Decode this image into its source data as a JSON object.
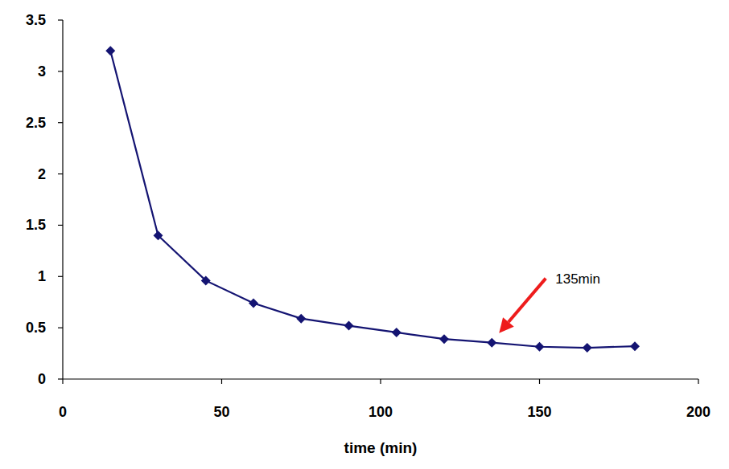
{
  "chart_data": {
    "type": "line",
    "x_label": "time (min)",
    "x": [
      15,
      30,
      45,
      60,
      75,
      90,
      105,
      120,
      135,
      150,
      165,
      180
    ],
    "series": [
      {
        "name": null,
        "color": "#141472",
        "marker": "diamond",
        "line_style": "solid",
        "values": [
          3.2,
          1.4,
          0.96,
          0.74,
          0.59,
          0.52,
          0.455,
          0.39,
          0.355,
          0.315,
          0.305,
          0.32
        ]
      }
    ],
    "xlim": [
      0,
      200
    ],
    "xticks": [
      0,
      50,
      100,
      150,
      200
    ],
    "ylim": [
      0,
      3.5
    ],
    "yticks": [
      0,
      0.5,
      1,
      1.5,
      2,
      2.5,
      3,
      3.5
    ],
    "grid": false,
    "annotations": [
      {
        "text": "135min",
        "x": 135,
        "y": 0.355
      }
    ]
  }
}
